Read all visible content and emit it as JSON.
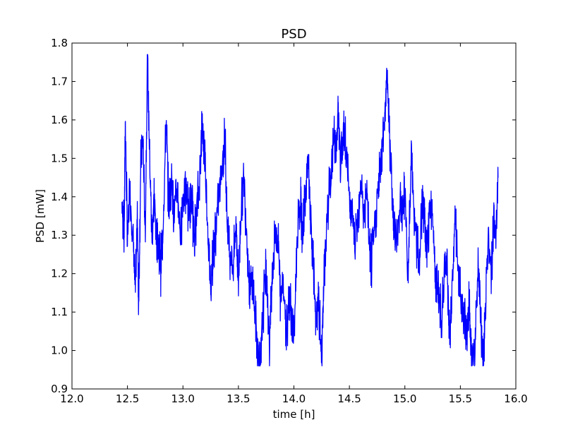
{
  "chart_data": {
    "type": "line",
    "title": "PSD",
    "xlabel": "time [h]",
    "ylabel": "PSD [mW]",
    "xlim": [
      12.0,
      16.0
    ],
    "ylim": [
      0.9,
      1.8
    ],
    "xticks": [
      "12.0",
      "12.5",
      "13.0",
      "13.5",
      "14.0",
      "14.5",
      "15.0",
      "15.5",
      "16.0"
    ],
    "yticks": [
      "0.9",
      "1.0",
      "1.1",
      "1.2",
      "1.3",
      "1.4",
      "1.5",
      "1.6",
      "1.7",
      "1.8"
    ],
    "grid": false,
    "series": [
      {
        "color": "#0000ff",
        "x": [
          12.45,
          12.47,
          12.48,
          12.5,
          12.52,
          12.55,
          12.57,
          12.59,
          12.6,
          12.62,
          12.64,
          12.66,
          12.68,
          12.7,
          12.72,
          12.74,
          12.76,
          12.78,
          12.8,
          12.82,
          12.85,
          12.87,
          12.9,
          12.92,
          12.95,
          12.98,
          13.0,
          13.03,
          13.06,
          13.08,
          13.1,
          13.12,
          13.15,
          13.17,
          13.2,
          13.23,
          13.25,
          13.28,
          13.3,
          13.33,
          13.36,
          13.38,
          13.4,
          13.42,
          13.45,
          13.48,
          13.5,
          13.52,
          13.55,
          13.58,
          13.6,
          13.63,
          13.66,
          13.68,
          13.7,
          13.72,
          13.75,
          13.78,
          13.8,
          13.83,
          13.86,
          13.88,
          13.9,
          13.93,
          13.96,
          13.98,
          14.0,
          14.03,
          14.06,
          14.08,
          14.1,
          14.13,
          14.16,
          14.18,
          14.2,
          14.22,
          14.25,
          14.27,
          14.3,
          14.33,
          14.36,
          14.38,
          14.4,
          14.42,
          14.45,
          14.47,
          14.5,
          14.52,
          14.55,
          14.58,
          14.6,
          14.63,
          14.66,
          14.68,
          14.7,
          14.73,
          14.76,
          14.78,
          14.8,
          14.82,
          14.84,
          14.86,
          14.88,
          14.9,
          14.93,
          14.96,
          14.98,
          15.0,
          15.03,
          15.06,
          15.08,
          15.1,
          15.13,
          15.16,
          15.18,
          15.2,
          15.23,
          15.26,
          15.28,
          15.3,
          15.33,
          15.36,
          15.38,
          15.4,
          15.42,
          15.45,
          15.48,
          15.5,
          15.53,
          15.56,
          15.58,
          15.6,
          15.63,
          15.66,
          15.68,
          15.7,
          15.72,
          15.75,
          15.78,
          15.8,
          15.82,
          15.84
        ],
        "y": [
          1.38,
          1.3,
          1.6,
          1.28,
          1.42,
          1.3,
          1.15,
          1.35,
          1.12,
          1.48,
          1.55,
          1.3,
          1.77,
          1.5,
          1.3,
          1.4,
          1.3,
          1.28,
          1.22,
          1.32,
          1.6,
          1.38,
          1.45,
          1.35,
          1.42,
          1.3,
          1.4,
          1.42,
          1.36,
          1.4,
          1.3,
          1.35,
          1.44,
          1.59,
          1.5,
          1.28,
          1.17,
          1.28,
          1.32,
          1.42,
          1.5,
          1.55,
          1.33,
          1.27,
          1.22,
          1.32,
          1.17,
          1.35,
          1.45,
          1.28,
          1.15,
          1.18,
          1.05,
          0.98,
          0.96,
          1.1,
          1.22,
          1.0,
          1.18,
          1.3,
          1.28,
          1.12,
          1.2,
          1.05,
          1.15,
          1.08,
          1.02,
          1.3,
          1.38,
          1.3,
          1.4,
          1.48,
          1.28,
          1.2,
          1.05,
          1.13,
          0.98,
          1.18,
          1.35,
          1.45,
          1.55,
          1.52,
          1.62,
          1.48,
          1.57,
          1.52,
          1.4,
          1.35,
          1.28,
          1.35,
          1.45,
          1.35,
          1.4,
          1.28,
          1.22,
          1.33,
          1.42,
          1.48,
          1.55,
          1.62,
          1.72,
          1.58,
          1.45,
          1.32,
          1.28,
          1.4,
          1.35,
          1.42,
          1.2,
          1.52,
          1.35,
          1.3,
          1.22,
          1.4,
          1.32,
          1.25,
          1.38,
          1.3,
          1.18,
          1.15,
          1.08,
          1.2,
          1.25,
          1.05,
          1.1,
          1.35,
          1.2,
          1.15,
          1.08,
          1.05,
          1.12,
          1.0,
          0.98,
          1.22,
          1.1,
          0.99,
          1.05,
          1.3,
          1.2,
          1.35,
          1.3,
          1.45
        ]
      }
    ]
  }
}
